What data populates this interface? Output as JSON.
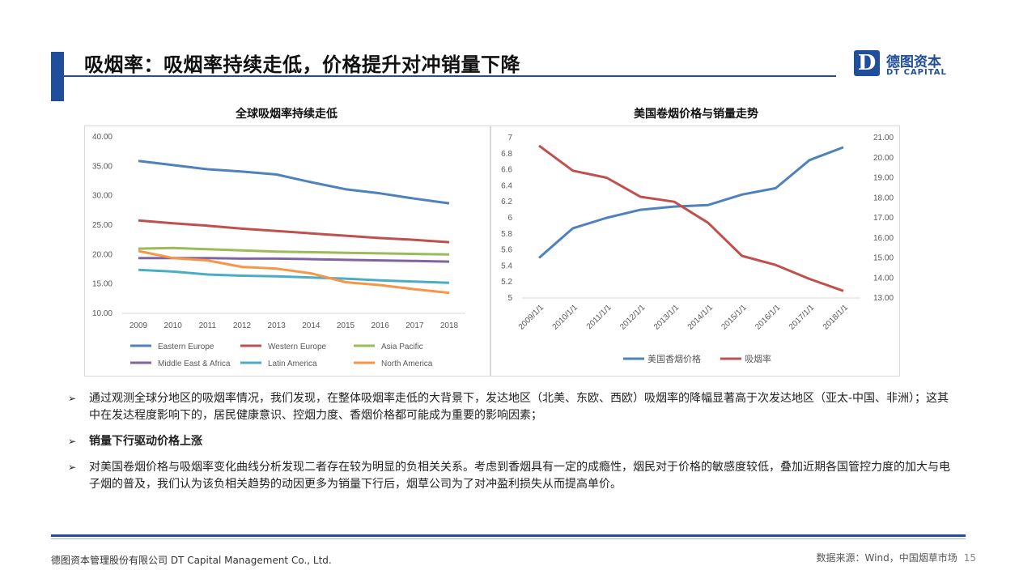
{
  "header": {
    "title": "吸烟率：吸烟率持续走低，价格提升对冲销量下降",
    "logo_cn": "德图资本",
    "logo_en": "DT CAPITAL",
    "logo_mark": "D"
  },
  "colors": {
    "brand": "#1f4e9c",
    "eastern_europe": "#4e81bd",
    "western_europe": "#c0504d",
    "asia_pacific": "#9bbb59",
    "middle_east_africa": "#8064a2",
    "latin_america": "#4bacc6",
    "north_america": "#f79646"
  },
  "chart_data": [
    {
      "type": "line",
      "title": "全球吸烟率持续走低",
      "categories": [
        "2009",
        "2010",
        "2011",
        "2012",
        "2013",
        "2014",
        "2015",
        "2016",
        "2017",
        "2018"
      ],
      "ylim": [
        10,
        40
      ],
      "yticks": [
        "10.00",
        "15.00",
        "20.00",
        "25.00",
        "30.00",
        "35.00",
        "40.00"
      ],
      "grid": false,
      "legend_position": "bottom",
      "series": [
        {
          "name": "Eastern Europe",
          "color": "#4e81bd",
          "values": [
            35.9,
            35.2,
            34.5,
            34.1,
            33.6,
            32.3,
            31.1,
            30.4,
            29.5,
            28.7
          ]
        },
        {
          "name": "Western Europe",
          "color": "#c0504d",
          "values": [
            25.8,
            25.3,
            24.9,
            24.4,
            24.0,
            23.6,
            23.2,
            22.8,
            22.5,
            22.1
          ]
        },
        {
          "name": "Asia Pacific",
          "color": "#9bbb59",
          "values": [
            21.0,
            21.1,
            20.9,
            20.7,
            20.5,
            20.4,
            20.3,
            20.2,
            20.1,
            20.0
          ]
        },
        {
          "name": "Middle East & Africa",
          "color": "#8064a2",
          "values": [
            19.4,
            19.4,
            19.4,
            19.3,
            19.3,
            19.2,
            19.1,
            19.0,
            18.9,
            18.8
          ]
        },
        {
          "name": "Latin America",
          "color": "#4bacc6",
          "values": [
            17.4,
            17.1,
            16.6,
            16.4,
            16.3,
            16.1,
            15.9,
            15.6,
            15.4,
            15.2
          ]
        },
        {
          "name": "North America",
          "color": "#f79646",
          "values": [
            20.6,
            19.4,
            19.0,
            17.9,
            17.6,
            16.8,
            15.3,
            14.8,
            14.1,
            13.5
          ]
        }
      ]
    },
    {
      "type": "line",
      "title": "美国卷烟价格与销量走势",
      "categories": [
        "2009/1/1",
        "2010/1/1",
        "2011/1/1",
        "2012/1/1",
        "2013/1/1",
        "2014/1/1",
        "2015/1/1",
        "2016/1/1",
        "2017/1/1",
        "2018/1/1"
      ],
      "ylim_left": [
        5,
        7
      ],
      "yticks_left": [
        "5",
        "5.2",
        "5.4",
        "5.6",
        "5.8",
        "6",
        "6.2",
        "6.4",
        "6.6",
        "6.8",
        "7"
      ],
      "ylim_right": [
        13,
        21
      ],
      "yticks_right": [
        "13.00",
        "14.00",
        "15.00",
        "16.00",
        "17.00",
        "18.00",
        "19.00",
        "20.00",
        "21.00"
      ],
      "grid": false,
      "legend_position": "bottom",
      "series": [
        {
          "name": "美国香烟价格",
          "color": "#4e81bd",
          "axis": "left",
          "values": [
            5.5,
            5.87,
            6.0,
            6.1,
            6.14,
            6.16,
            6.29,
            6.37,
            6.72,
            6.88
          ]
        },
        {
          "name": "吸烟率",
          "color": "#c0504d",
          "axis": "right",
          "values": [
            20.6,
            19.35,
            19.0,
            18.05,
            17.8,
            16.75,
            15.1,
            14.65,
            13.95,
            13.35
          ]
        }
      ]
    }
  ],
  "bullets": [
    {
      "mark": "➢",
      "text": "通过观测全球分地区的吸烟率情况，我们发现，在整体吸烟率走低的大背景下，发达地区（北美、东欧、西欧）吸烟率的降幅显著高于次发达地区（亚太-中国、非洲）；这其中在发达程度影响下的，居民健康意识、控烟力度、香烟价格都可能成为重要的影响因素；"
    },
    {
      "mark": "➢",
      "text": "销量下行驱动价格上涨"
    },
    {
      "mark": "➢",
      "text": "对美国卷烟价格与吸烟率变化曲线分析发现二者存在较为明显的负相关关系。考虑到香烟具有一定的成瘾性，烟民对于价格的敏感度较低，叠加近期各国管控力度的加大与电子烟的普及，我们认为该负相关趋势的动因更多为销量下行后，烟草公司为了对冲盈利损失从而提高单价。"
    }
  ],
  "footer": {
    "company": "德图资本管理股份有限公司  DT Capital Management  Co., Ltd.",
    "source": "数据来源：Wind，中国烟草市场",
    "page": "15"
  }
}
